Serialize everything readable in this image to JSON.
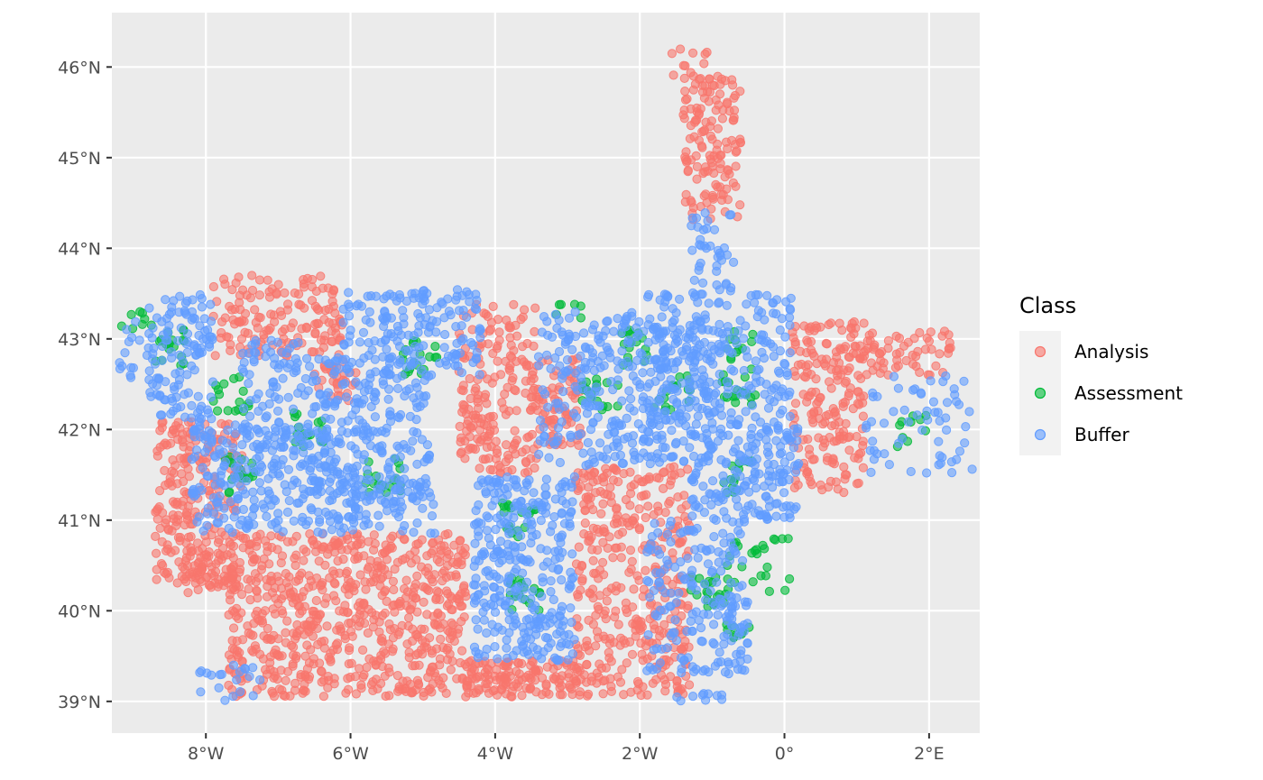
{
  "chart_data": {
    "type": "scatter",
    "title": "",
    "xlabel": "",
    "ylabel": "",
    "x_ticks": [
      {
        "value": -8,
        "label": "8°W"
      },
      {
        "value": -6,
        "label": "6°W"
      },
      {
        "value": -4,
        "label": "4°W"
      },
      {
        "value": -2,
        "label": "2°W"
      },
      {
        "value": 0,
        "label": "0°"
      },
      {
        "value": 2,
        "label": "2°E"
      }
    ],
    "y_ticks": [
      {
        "value": 39,
        "label": "39°N"
      },
      {
        "value": 40,
        "label": "40°N"
      },
      {
        "value": 41,
        "label": "41°N"
      },
      {
        "value": 42,
        "label": "42°N"
      },
      {
        "value": 43,
        "label": "43°N"
      },
      {
        "value": 44,
        "label": "44°N"
      },
      {
        "value": 45,
        "label": "45°N"
      },
      {
        "value": 46,
        "label": "46°N"
      }
    ],
    "xlim": [
      -9.3,
      2.7
    ],
    "ylim": [
      38.65,
      46.6
    ],
    "grid": true,
    "legend": {
      "title": "Class",
      "placement": "right",
      "entries": [
        {
          "label": "Analysis",
          "color": "#F8766D"
        },
        {
          "label": "Assessment",
          "color": "#00BA38"
        },
        {
          "label": "Buffer",
          "color": "#619CFF"
        }
      ]
    },
    "colors": {
      "panel_background": "#EBEBEB",
      "grid": "#FFFFFF",
      "legend_key_background": "#F2F2F2",
      "axis_text": "#4D4D4D"
    },
    "series": [
      {
        "name": "Analysis",
        "color": "#F8766D",
        "regions": [
          {
            "x": [
              -8.7,
              -7.5
            ],
            "y": [
              41.0,
              42.1
            ],
            "n": 140
          },
          {
            "x": [
              -8.7,
              -7.7
            ],
            "y": [
              40.3,
              41.1
            ],
            "n": 80
          },
          {
            "x": [
              -7.7,
              -4.4
            ],
            "y": [
              39.05,
              40.85
            ],
            "n": 700
          },
          {
            "x": [
              -8.3,
              -7.6
            ],
            "y": [
              40.2,
              40.85
            ],
            "n": 60
          },
          {
            "x": [
              -4.4,
              -2.8
            ],
            "y": [
              39.05,
              39.45
            ],
            "n": 140
          },
          {
            "x": [
              -2.9,
              -1.3
            ],
            "y": [
              39.05,
              41.6
            ],
            "n": 380
          },
          {
            "x": [
              -4.5,
              -3.4
            ],
            "y": [
              41.5,
              43.4
            ],
            "n": 190
          },
          {
            "x": [
              -3.5,
              -2.8
            ],
            "y": [
              41.8,
              42.8
            ],
            "n": 80
          },
          {
            "x": [
              -7.9,
              -6.1
            ],
            "y": [
              42.8,
              43.7
            ],
            "n": 150
          },
          {
            "x": [
              -6.5,
              -5.9
            ],
            "y": [
              42.3,
              42.8
            ],
            "n": 30
          },
          {
            "x": [
              0.1,
              1.1
            ],
            "y": [
              41.3,
              43.2
            ],
            "n": 200
          },
          {
            "x": [
              1.1,
              2.3
            ],
            "y": [
              42.6,
              43.1
            ],
            "n": 60
          },
          {
            "x": [
              -1.4,
              -0.6
            ],
            "y": [
              44.3,
              45.9
            ],
            "n": 140
          },
          {
            "x": [
              -1.6,
              -1.0
            ],
            "y": [
              45.9,
              46.2
            ],
            "n": 10
          }
        ]
      },
      {
        "name": "Assessment",
        "color": "#00BA38",
        "regions": [
          {
            "x": [
              -8.7,
              -8.3
            ],
            "y": [
              42.7,
              43.1
            ],
            "n": 18
          },
          {
            "x": [
              -7.9,
              -7.4
            ],
            "y": [
              42.2,
              42.6
            ],
            "n": 16
          },
          {
            "x": [
              -6.8,
              -6.3
            ],
            "y": [
              41.8,
              42.2
            ],
            "n": 18
          },
          {
            "x": [
              -7.8,
              -7.3
            ],
            "y": [
              41.3,
              41.7
            ],
            "n": 18
          },
          {
            "x": [
              -5.8,
              -5.3
            ],
            "y": [
              41.3,
              41.7
            ],
            "n": 18
          },
          {
            "x": [
              -5.3,
              -4.8
            ],
            "y": [
              42.6,
              43.0
            ],
            "n": 18
          },
          {
            "x": [
              -3.9,
              -3.4
            ],
            "y": [
              40.8,
              41.2
            ],
            "n": 18
          },
          {
            "x": [
              -3.8,
              -3.3
            ],
            "y": [
              40.0,
              40.4
            ],
            "n": 16
          },
          {
            "x": [
              -2.8,
              -2.3
            ],
            "y": [
              42.2,
              42.6
            ],
            "n": 18
          },
          {
            "x": [
              -2.3,
              -1.9
            ],
            "y": [
              42.7,
              43.1
            ],
            "n": 16
          },
          {
            "x": [
              -1.8,
              -1.3
            ],
            "y": [
              42.2,
              42.6
            ],
            "n": 16
          },
          {
            "x": [
              -0.9,
              -0.4
            ],
            "y": [
              42.2,
              43.1
            ],
            "n": 30
          },
          {
            "x": [
              -0.9,
              -0.4
            ],
            "y": [
              41.3,
              41.7
            ],
            "n": 14
          },
          {
            "x": [
              -1.3,
              -0.8
            ],
            "y": [
              40.0,
              40.4
            ],
            "n": 18
          },
          {
            "x": [
              -0.8,
              0.1
            ],
            "y": [
              40.2,
              40.8
            ],
            "n": 26
          },
          {
            "x": [
              -0.8,
              -0.4
            ],
            "y": [
              39.7,
              39.85
            ],
            "n": 8
          },
          {
            "x": [
              1.5,
              2.0
            ],
            "y": [
              41.8,
              42.2
            ],
            "n": 10
          },
          {
            "x": [
              -9.2,
              -8.6
            ],
            "y": [
              43.1,
              43.3
            ],
            "n": 8
          },
          {
            "x": [
              -3.3,
              -2.8
            ],
            "y": [
              43.2,
              43.4
            ],
            "n": 6
          }
        ]
      },
      {
        "name": "Buffer",
        "color": "#619CFF",
        "regions": [
          {
            "x": [
              -8.8,
              -7.9
            ],
            "y": [
              42.1,
              43.5
            ],
            "n": 120
          },
          {
            "x": [
              -7.5,
              -6.6
            ],
            "y": [
              41.8,
              43.0
            ],
            "n": 90
          },
          {
            "x": [
              -8.2,
              -6.3
            ],
            "y": [
              40.85,
              42.1
            ],
            "n": 230
          },
          {
            "x": [
              -6.6,
              -4.9
            ],
            "y": [
              41.2,
              42.8
            ],
            "n": 230
          },
          {
            "x": [
              -6.1,
              -4.2
            ],
            "y": [
              42.6,
              43.55
            ],
            "n": 170
          },
          {
            "x": [
              -6.3,
              -4.8
            ],
            "y": [
              40.85,
              41.5
            ],
            "n": 90
          },
          {
            "x": [
              -4.3,
              -2.9
            ],
            "y": [
              39.45,
              41.5
            ],
            "n": 320
          },
          {
            "x": [
              -3.4,
              -1.0
            ],
            "y": [
              41.6,
              43.3
            ],
            "n": 330
          },
          {
            "x": [
              -1.9,
              0.1
            ],
            "y": [
              42.1,
              43.5
            ],
            "n": 230
          },
          {
            "x": [
              -1.3,
              0.2
            ],
            "y": [
              41.0,
              42.1
            ],
            "n": 190
          },
          {
            "x": [
              -1.9,
              -0.5
            ],
            "y": [
              39.3,
              41.0
            ],
            "n": 190
          },
          {
            "x": [
              -1.3,
              -0.7
            ],
            "y": [
              43.5,
              44.4
            ],
            "n": 40
          },
          {
            "x": [
              1.1,
              2.6
            ],
            "y": [
              41.5,
              42.6
            ],
            "n": 60
          },
          {
            "x": [
              -9.2,
              -8.7
            ],
            "y": [
              42.5,
              43.2
            ],
            "n": 16
          },
          {
            "x": [
              -8.1,
              -7.2
            ],
            "y": [
              39.0,
              39.4
            ],
            "n": 20
          },
          {
            "x": [
              -1.5,
              -0.8
            ],
            "y": [
              39.0,
              39.1
            ],
            "n": 10
          }
        ]
      }
    ]
  }
}
